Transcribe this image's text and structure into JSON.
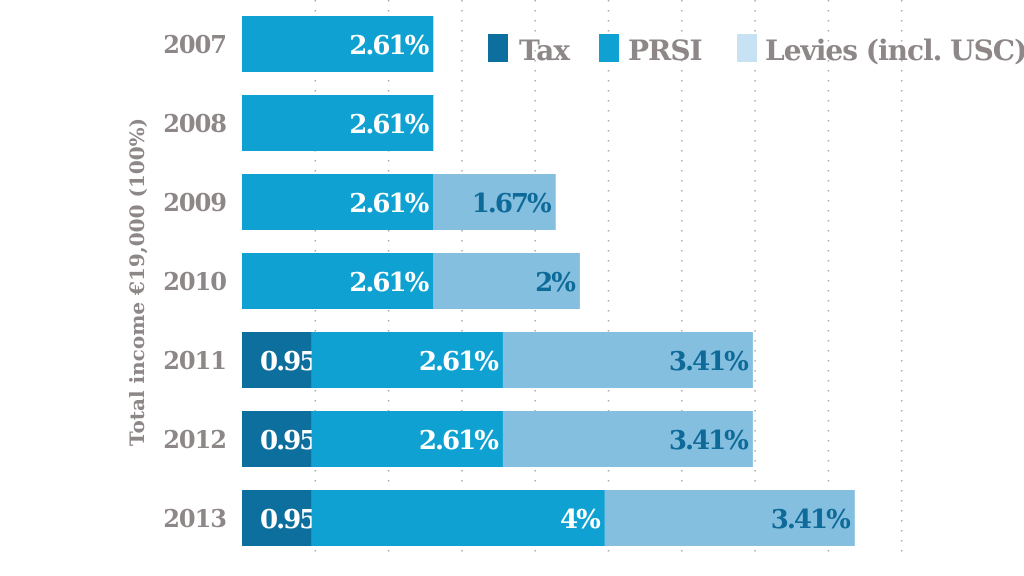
{
  "chart_data": {
    "type": "bar",
    "orientation": "horizontal",
    "stacked": true,
    "ylabel": "Total income €19,000 (100%)",
    "xlim": [
      0,
      9
    ],
    "grid": true,
    "legend_placement": "top-right",
    "categories": [
      "2007",
      "2008",
      "2009",
      "2010",
      "2011",
      "2012",
      "2013"
    ],
    "series": [
      {
        "name": "Tax",
        "color": "#0d6f9e",
        "label_color": "#ffffff",
        "values": [
          0,
          0,
          0,
          0,
          0.95,
          0.95,
          0.95
        ],
        "labels": [
          "",
          "",
          "",
          "",
          "0.95%",
          "0.95%",
          "0.95%"
        ]
      },
      {
        "name": "PRSI",
        "color": "#0ea1d2",
        "label_color": "#ffffff",
        "values": [
          2.61,
          2.61,
          2.61,
          2.61,
          2.61,
          2.61,
          4
        ],
        "labels": [
          "2.61%",
          "2.61%",
          "2.61%",
          "2.61%",
          "2.61%",
          "2.61%",
          "4%"
        ]
      },
      {
        "name": "Levies (incl. USC)",
        "color": "#85bfe0",
        "legend_color": "#c7e2f2",
        "label_color": "#0e6a98",
        "values": [
          0,
          0,
          1.67,
          2,
          3.41,
          3.41,
          3.41
        ],
        "labels": [
          "",
          "",
          "1.67%",
          "2%",
          "3.41%",
          "3.41%",
          "3.41%"
        ]
      }
    ]
  }
}
